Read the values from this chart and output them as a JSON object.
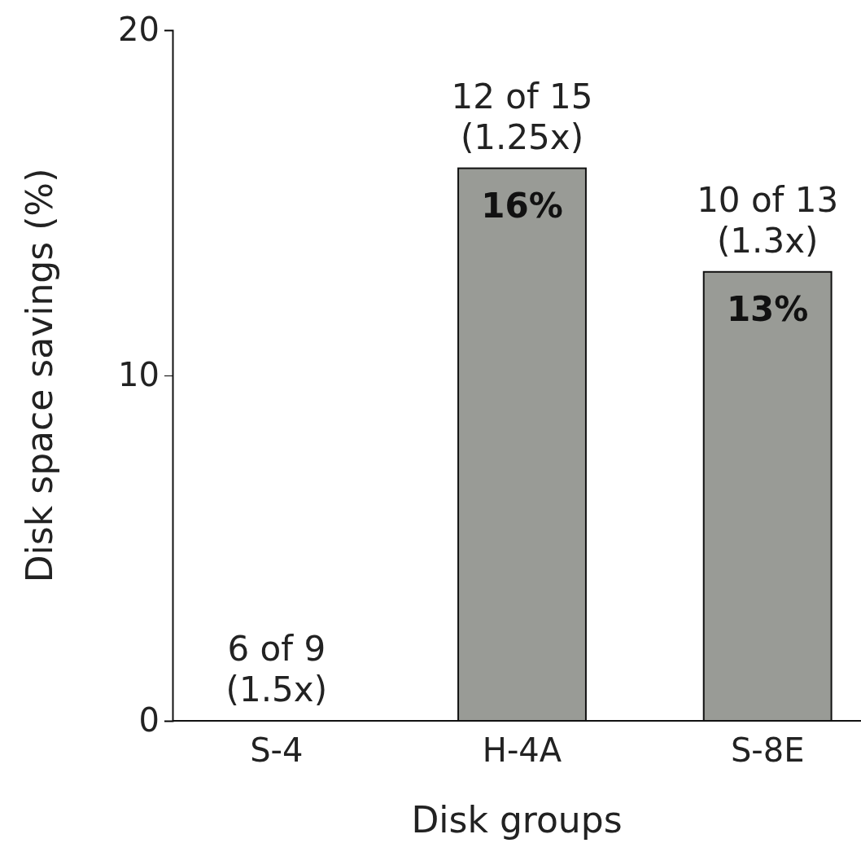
{
  "chart_data": {
    "type": "bar",
    "xlabel": "Disk groups",
    "ylabel": "Disk space savings (%)",
    "categories": [
      "S-4",
      "H-4A",
      "S-8E"
    ],
    "values": [
      0,
      16,
      13
    ],
    "value_labels": [
      null,
      "16%",
      "13%"
    ],
    "color": "#999b96",
    "ylim": [
      0,
      20
    ],
    "yticks": [
      0,
      10,
      20
    ],
    "grid": false,
    "annotations": [
      {
        "text": "6 of 9\n(1.5x)",
        "x": "S-4",
        "y": 0
      },
      {
        "text": "12 of 15\n(1.25x)",
        "x": "H-4A",
        "y": 16
      },
      {
        "text": "10 of 13\n(1.3x)",
        "x": "S-8E",
        "y": 13
      }
    ]
  }
}
